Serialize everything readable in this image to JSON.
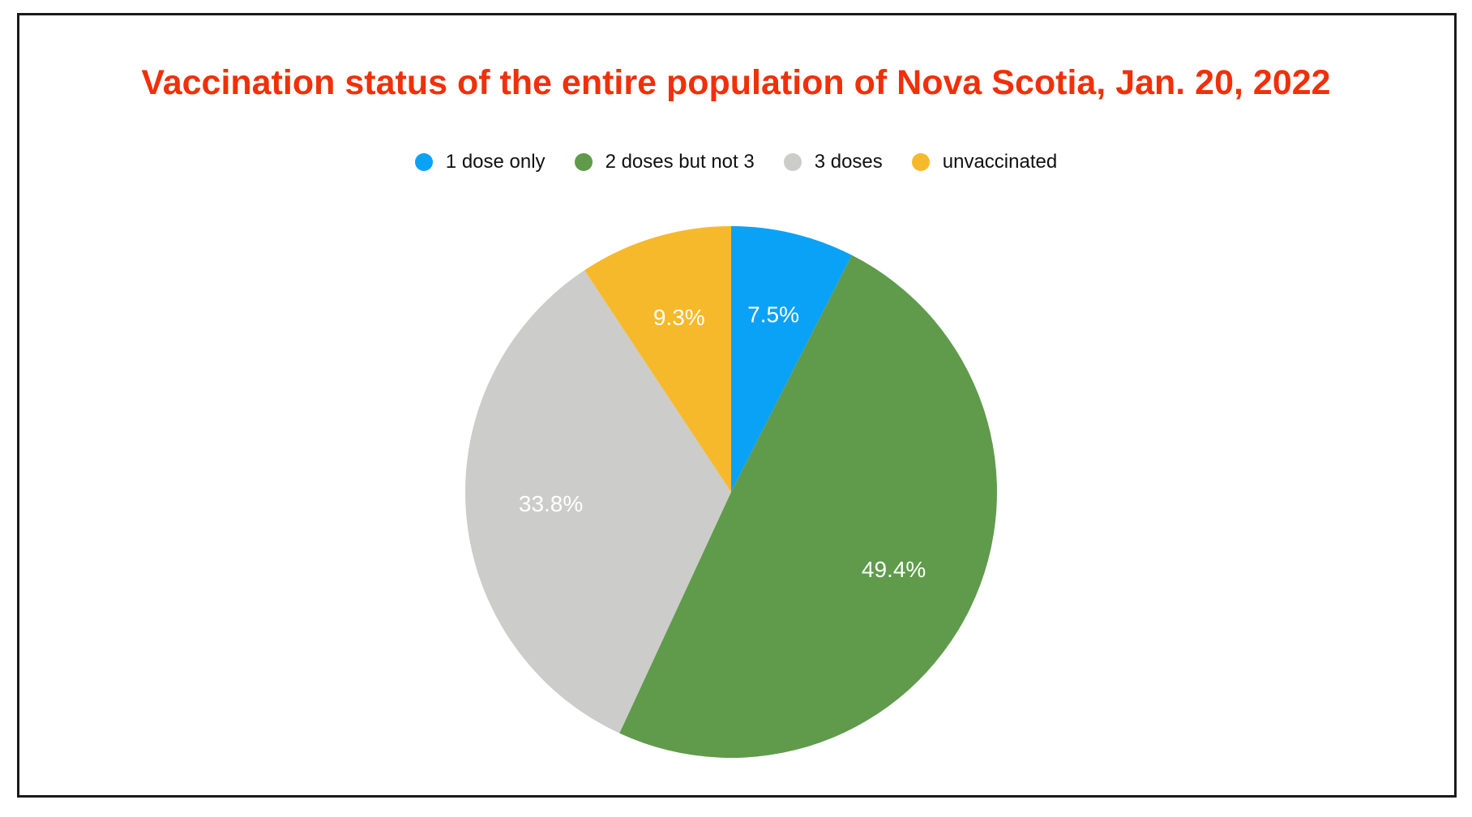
{
  "chart_data": {
    "type": "pie",
    "title": "Vaccination status of the entire population of Nova Scotia, Jan. 20, 2022",
    "legend_position": "top",
    "start_angle_deg": 0,
    "direction": "clockwise",
    "slices": [
      {
        "label": "1 dose only",
        "value": 7.5,
        "display": "7.5%",
        "color": "#0aa2f7"
      },
      {
        "label": "2 doses but not 3",
        "value": 49.4,
        "display": "49.4%",
        "color": "#5f9b4b"
      },
      {
        "label": "3 doses",
        "value": 33.8,
        "display": "33.8%",
        "color": "#cccccb"
      },
      {
        "label": "unvaccinated",
        "value": 9.3,
        "display": "9.3%",
        "color": "#f6b92b"
      }
    ]
  }
}
